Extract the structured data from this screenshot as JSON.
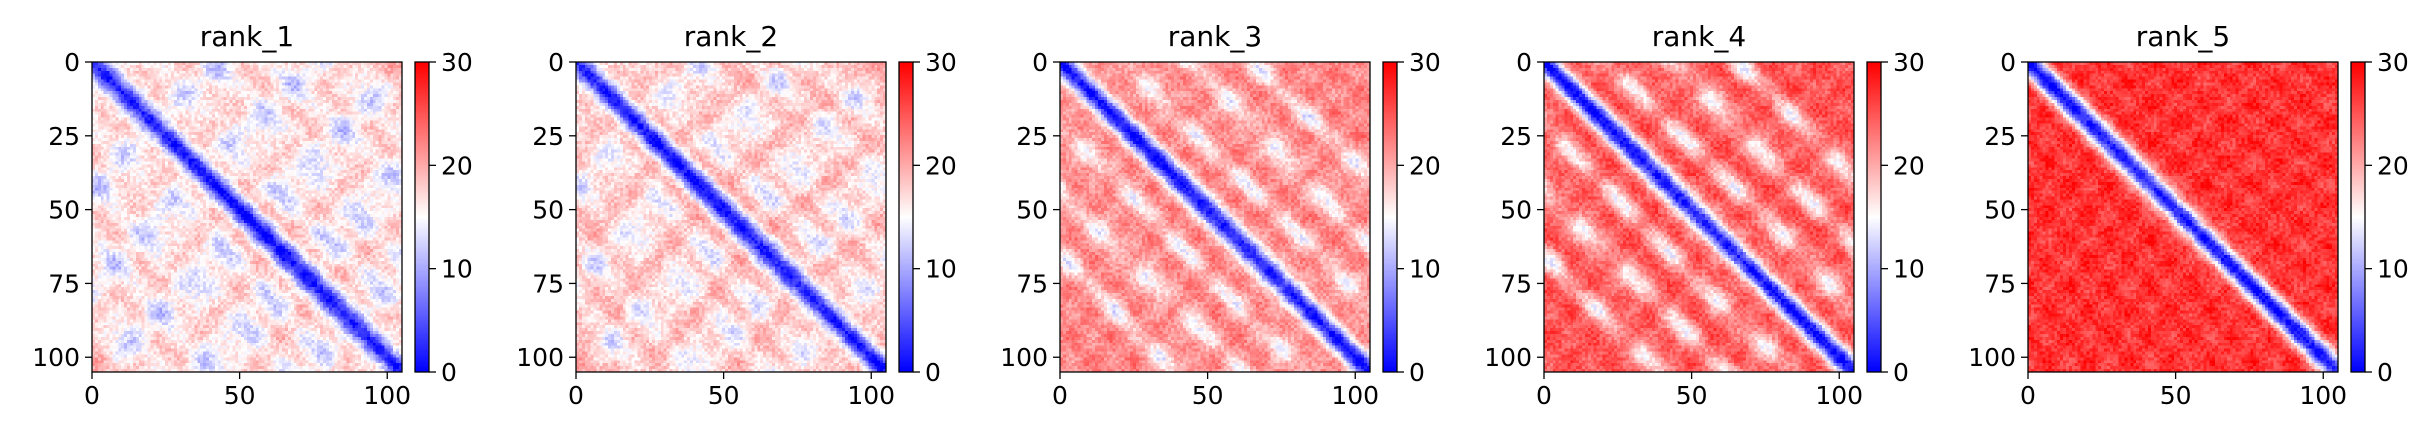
{
  "chart_data": [
    {
      "type": "heatmap",
      "title": "rank_1",
      "n": 106,
      "xlim": [
        0,
        105
      ],
      "ylim": [
        105,
        0
      ],
      "x_ticks": [
        0,
        50,
        100
      ],
      "y_ticks": [
        0,
        25,
        50,
        75,
        100
      ],
      "value_range": [
        0,
        30
      ],
      "colorbar_ticks": [
        0,
        10,
        20,
        30
      ],
      "colormap": "bwr",
      "pattern": {
        "off_diagonal_bands": [
          [
            20,
            7.5
          ],
          [
            40,
            8.5
          ],
          [
            62,
            8.5
          ],
          [
            84,
            8.5
          ]
        ],
        "band_depth": 0.55,
        "far_level": 19
      }
    },
    {
      "type": "heatmap",
      "title": "rank_2",
      "n": 106,
      "xlim": [
        0,
        105
      ],
      "ylim": [
        105,
        0
      ],
      "x_ticks": [
        0,
        50,
        100
      ],
      "y_ticks": [
        0,
        25,
        50,
        75,
        100
      ],
      "value_range": [
        0,
        30
      ],
      "colorbar_ticks": [
        0,
        10,
        20,
        30
      ],
      "colormap": "bwr",
      "pattern": {
        "off_diagonal_bands": [
          [
            20,
            7.5
          ],
          [
            40,
            8.5
          ],
          [
            62,
            8.5
          ],
          [
            84,
            8.5
          ]
        ],
        "band_depth": 0.5,
        "far_level": 20
      }
    },
    {
      "type": "heatmap",
      "title": "rank_3",
      "n": 106,
      "xlim": [
        0,
        105
      ],
      "ylim": [
        105,
        0
      ],
      "x_ticks": [
        0,
        50,
        100
      ],
      "y_ticks": [
        0,
        25,
        50,
        75,
        100
      ],
      "value_range": [
        0,
        30
      ],
      "colorbar_ticks": [
        0,
        10,
        20,
        30
      ],
      "colormap": "bwr",
      "pattern": {
        "off_diagonal_bands": [
          [
            22,
            4.5
          ],
          [
            44,
            5
          ],
          [
            66,
            5
          ]
        ],
        "band_depth": 0.5,
        "far_level": 22
      }
    },
    {
      "type": "heatmap",
      "title": "rank_4",
      "n": 106,
      "xlim": [
        0,
        105
      ],
      "ylim": [
        105,
        0
      ],
      "x_ticks": [
        0,
        50,
        100
      ],
      "y_ticks": [
        0,
        25,
        50,
        75,
        100
      ],
      "value_range": [
        0,
        30
      ],
      "colorbar_ticks": [
        0,
        10,
        20,
        30
      ],
      "colormap": "bwr",
      "pattern": {
        "off_diagonal_bands": [
          [
            22,
            5
          ],
          [
            44,
            5.5
          ],
          [
            66,
            5
          ]
        ],
        "band_depth": 0.55,
        "far_level": 25
      }
    },
    {
      "type": "heatmap",
      "title": "rank_5",
      "n": 106,
      "xlim": [
        0,
        105
      ],
      "ylim": [
        105,
        0
      ],
      "x_ticks": [
        0,
        50,
        100
      ],
      "y_ticks": [
        0,
        25,
        50,
        75,
        100
      ],
      "value_range": [
        0,
        30
      ],
      "colorbar_ticks": [
        0,
        10,
        20,
        30
      ],
      "colormap": "bwr",
      "pattern": {
        "off_diagonal_bands": [],
        "band_depth": 0,
        "far_level": 27
      }
    }
  ]
}
